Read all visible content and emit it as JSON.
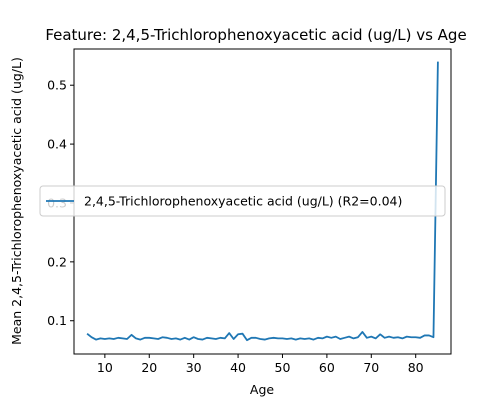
{
  "chart_data": {
    "type": "line",
    "title": "Feature: 2,4,5-Trichlorophenoxyacetic acid (ug/L) vs Age",
    "xlabel": "Age",
    "ylabel": "Mean 2,4,5-Trichlorophenoxyacetic acid (ug/L)",
    "xlim": [
      3.05,
      87.95
    ],
    "ylim": [
      0.0435,
      0.5615
    ],
    "xticks": [
      10,
      20,
      30,
      40,
      50,
      60,
      70,
      80
    ],
    "yticks": [
      0.1,
      0.2,
      0.3,
      0.4,
      0.5
    ],
    "ytick_labels": [
      "0.1",
      "0.2",
      "0.3",
      "0.4",
      "0.5"
    ],
    "grid": false,
    "legend": {
      "placement": "center-left"
    },
    "series": [
      {
        "name": "2,4,5-Trichlorophenoxyacetic acid (ug/L) (R2=0.04)",
        "color": "#1f77b4",
        "x": [
          6,
          7,
          8,
          9,
          10,
          11,
          12,
          13,
          14,
          15,
          16,
          17,
          18,
          19,
          20,
          21,
          22,
          23,
          24,
          25,
          26,
          27,
          28,
          29,
          30,
          31,
          32,
          33,
          34,
          35,
          36,
          37,
          38,
          39,
          40,
          41,
          42,
          43,
          44,
          45,
          46,
          47,
          48,
          49,
          50,
          51,
          52,
          53,
          54,
          55,
          56,
          57,
          58,
          59,
          60,
          61,
          62,
          63,
          64,
          65,
          66,
          67,
          68,
          69,
          70,
          71,
          72,
          73,
          74,
          75,
          76,
          77,
          78,
          79,
          80,
          81,
          82,
          83,
          84,
          85
        ],
        "y": [
          0.078,
          0.072,
          0.068,
          0.07,
          0.069,
          0.07,
          0.069,
          0.071,
          0.07,
          0.069,
          0.076,
          0.07,
          0.068,
          0.071,
          0.071,
          0.07,
          0.069,
          0.072,
          0.071,
          0.069,
          0.07,
          0.068,
          0.071,
          0.068,
          0.072,
          0.069,
          0.068,
          0.071,
          0.07,
          0.069,
          0.071,
          0.07,
          0.079,
          0.069,
          0.077,
          0.078,
          0.067,
          0.071,
          0.071,
          0.069,
          0.068,
          0.07,
          0.071,
          0.07,
          0.07,
          0.069,
          0.07,
          0.068,
          0.07,
          0.069,
          0.07,
          0.068,
          0.071,
          0.07,
          0.073,
          0.071,
          0.073,
          0.069,
          0.071,
          0.073,
          0.07,
          0.072,
          0.081,
          0.071,
          0.073,
          0.07,
          0.077,
          0.071,
          0.073,
          0.071,
          0.072,
          0.07,
          0.073,
          0.072,
          0.072,
          0.071,
          0.075,
          0.075,
          0.072,
          0.54
        ]
      }
    ]
  }
}
